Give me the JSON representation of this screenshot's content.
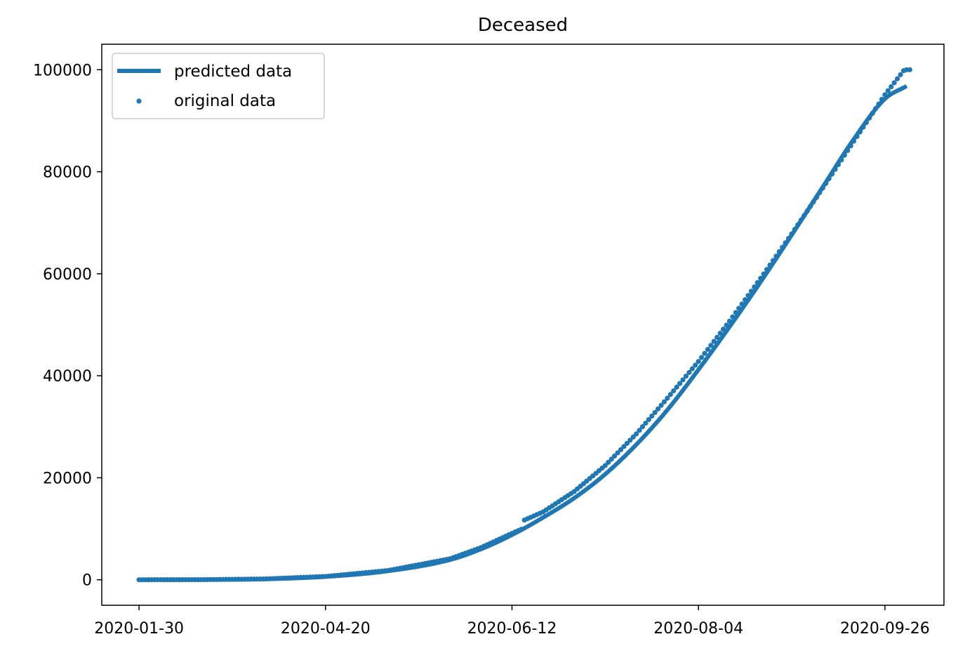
{
  "chart_data": {
    "type": "line",
    "title": "Deceased",
    "xlabel": "",
    "ylabel": "",
    "x_tick_labels": [
      "2020-01-30",
      "2020-04-20",
      "2020-06-12",
      "2020-08-04",
      "2020-09-26"
    ],
    "y_tick_labels": [
      "0",
      "20000",
      "40000",
      "60000",
      "80000",
      "100000"
    ],
    "y_ticks": [
      0,
      20000,
      40000,
      60000,
      80000,
      100000
    ],
    "ylim": [
      -5000,
      105000
    ],
    "x_tick_index": [
      0,
      60,
      120,
      180,
      240
    ],
    "x_range": [
      -12,
      259
    ],
    "n_points": 249,
    "grid": false,
    "legend": {
      "placement": "upper left",
      "entries": [
        "predicted data",
        "original data"
      ]
    },
    "color": "#1f77b4",
    "series": [
      {
        "name": "predicted data",
        "kind": "line",
        "x_index": [
          0,
          20,
          40,
          60,
          80,
          100,
          110,
          120,
          130,
          140,
          150,
          160,
          170,
          180,
          190,
          200,
          210,
          220,
          230,
          240,
          247
        ],
        "values": [
          0,
          10,
          120,
          600,
          1700,
          3900,
          6000,
          8800,
          12200,
          16000,
          20700,
          26500,
          33300,
          41200,
          49600,
          58400,
          67600,
          77000,
          86400,
          94300,
          96800
        ]
      },
      {
        "name": "original data",
        "kind": "scatter",
        "x_index": [
          0,
          20,
          40,
          60,
          80,
          100,
          110,
          120,
          123,
          124,
          130,
          140,
          150,
          160,
          170,
          180,
          190,
          200,
          210,
          220,
          230,
          240,
          246,
          247
        ],
        "values": [
          0,
          20,
          150,
          650,
          1800,
          4100,
          6300,
          9100,
          9900,
          11700,
          13300,
          17300,
          22400,
          28600,
          35600,
          42800,
          50700,
          59100,
          67800,
          76800,
          86000,
          95100,
          99800,
          100000
        ]
      }
    ]
  }
}
